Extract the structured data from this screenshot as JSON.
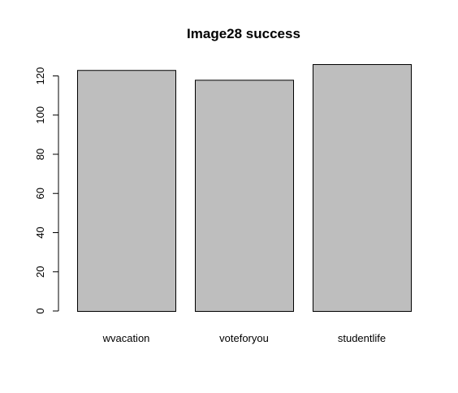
{
  "chart_data": {
    "type": "bar",
    "title": "Image28 success",
    "xlabel": "",
    "ylabel": "",
    "categories": [
      "wvacation",
      "voteforyou",
      "studentlife"
    ],
    "values": [
      123,
      118,
      126
    ],
    "ylim": [
      0,
      126
    ],
    "yticks": [
      0,
      20,
      40,
      60,
      80,
      100,
      120
    ],
    "grid": false,
    "bar_color": "#bebebe",
    "bar_border_color": "#000000"
  }
}
